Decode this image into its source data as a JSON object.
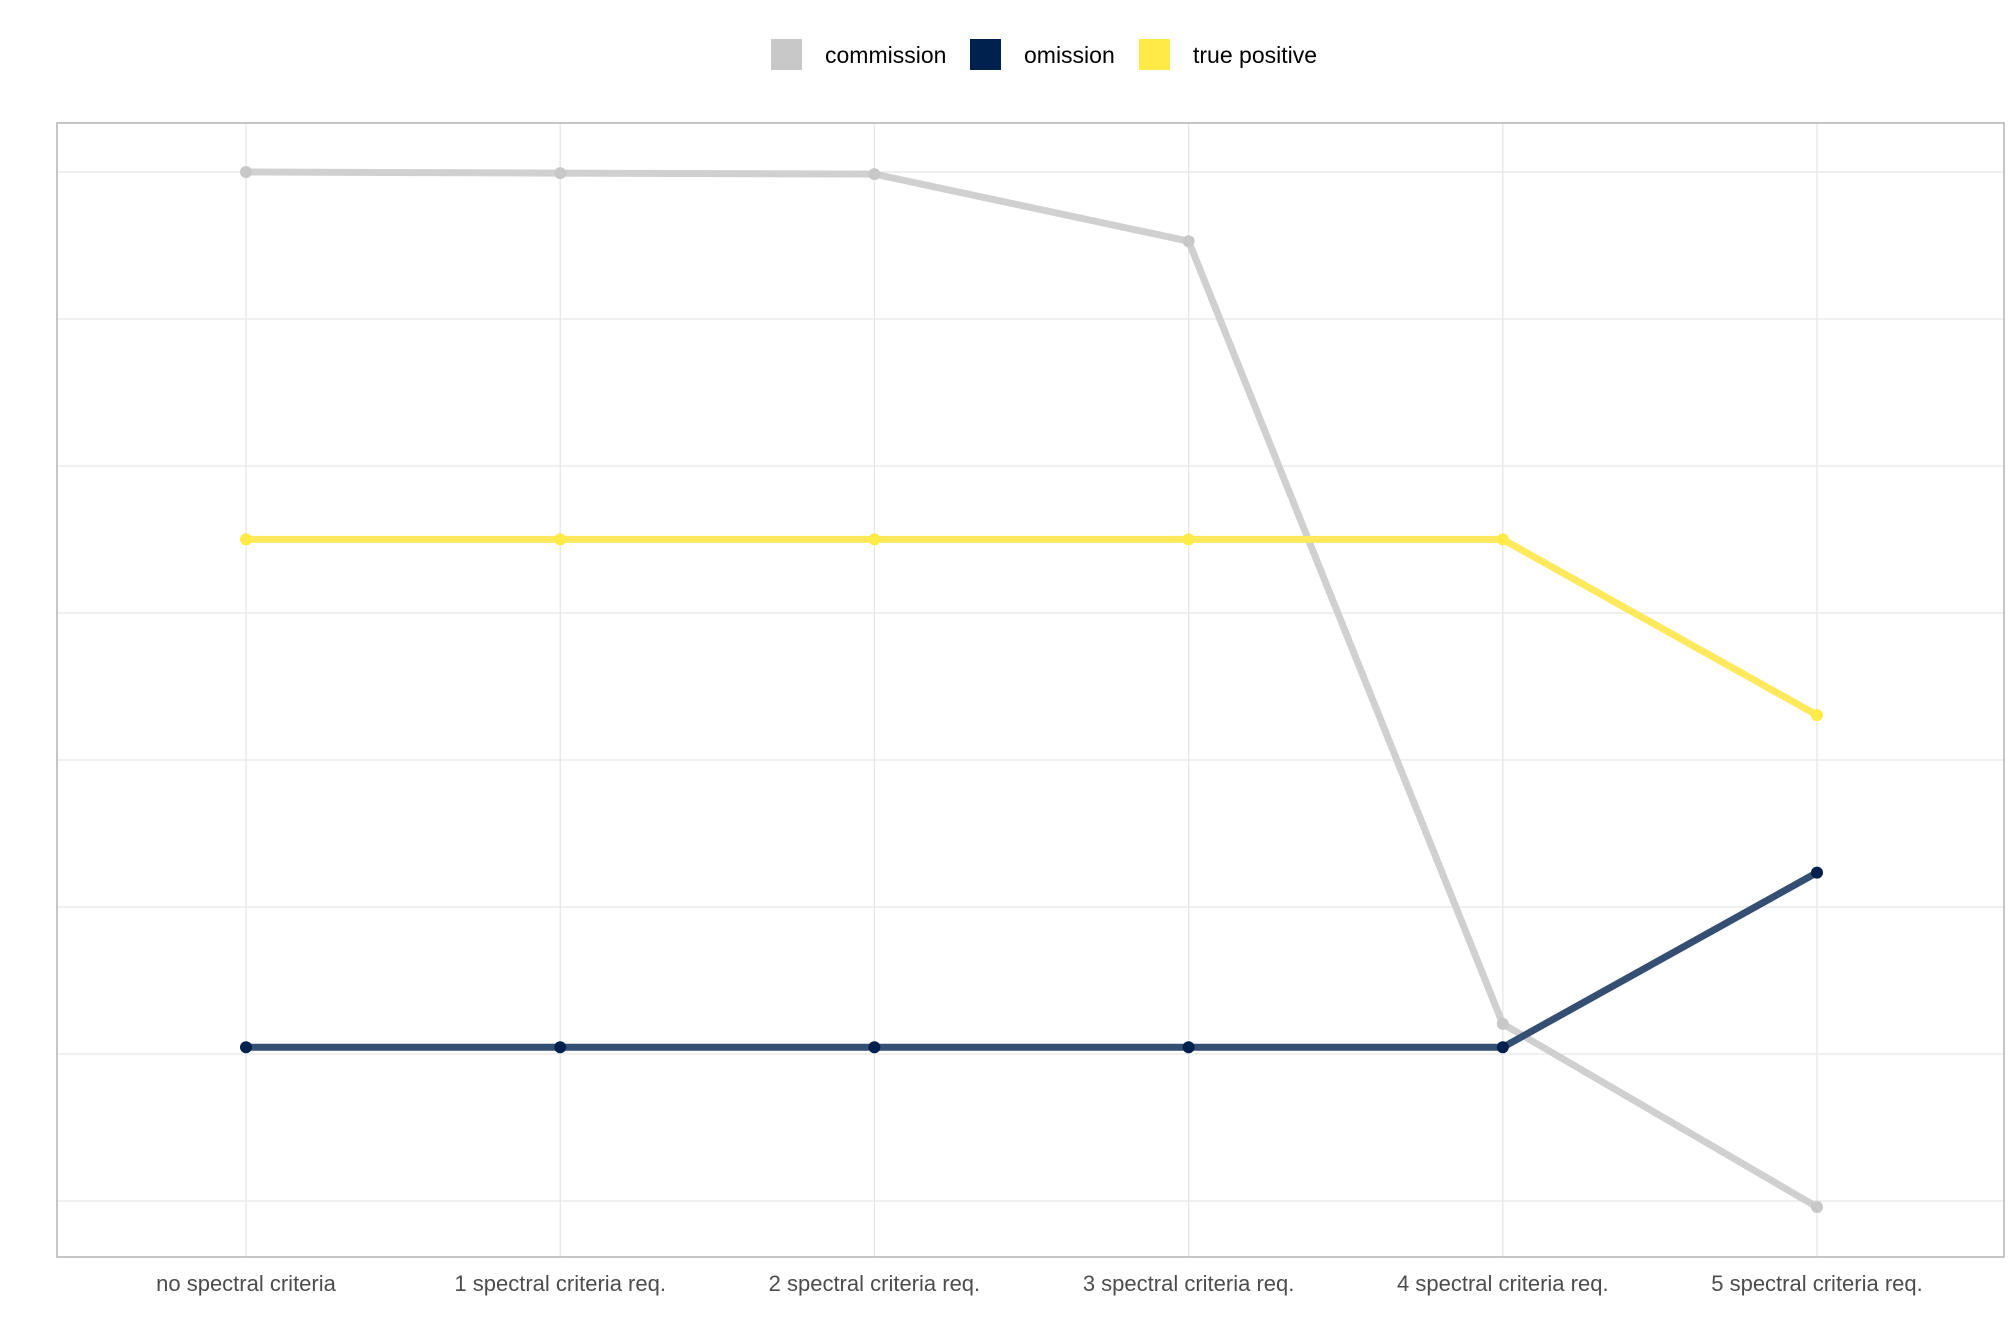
{
  "chart_data": {
    "type": "line",
    "categories": [
      "no spectral criteria",
      "1 spectral criteria req.",
      "2 spectral criteria req.",
      "3 spectral criteria req.",
      "4 spectral criteria req.",
      "5 spectral criteria req."
    ],
    "series": [
      {
        "name": "commission",
        "color": "#c8c8c8",
        "line_color": "#d0d0d0",
        "values": [
          0.965,
          0.964,
          0.963,
          0.9,
          0.165,
          -0.007
        ]
      },
      {
        "name": "omission",
        "color": "#00204d",
        "line_color": "#344f72",
        "values": [
          0.143,
          0.143,
          0.143,
          0.143,
          0.143,
          0.307
        ]
      },
      {
        "name": "true positive",
        "color": "#ffea46",
        "line_color": "#fee85c",
        "values": [
          0.62,
          0.62,
          0.62,
          0.62,
          0.62,
          0.455
        ]
      }
    ],
    "ylim": [
      -0.05,
      1.0
    ],
    "grid": true,
    "legend_position": "top",
    "xlabel": "",
    "ylabel": ""
  }
}
